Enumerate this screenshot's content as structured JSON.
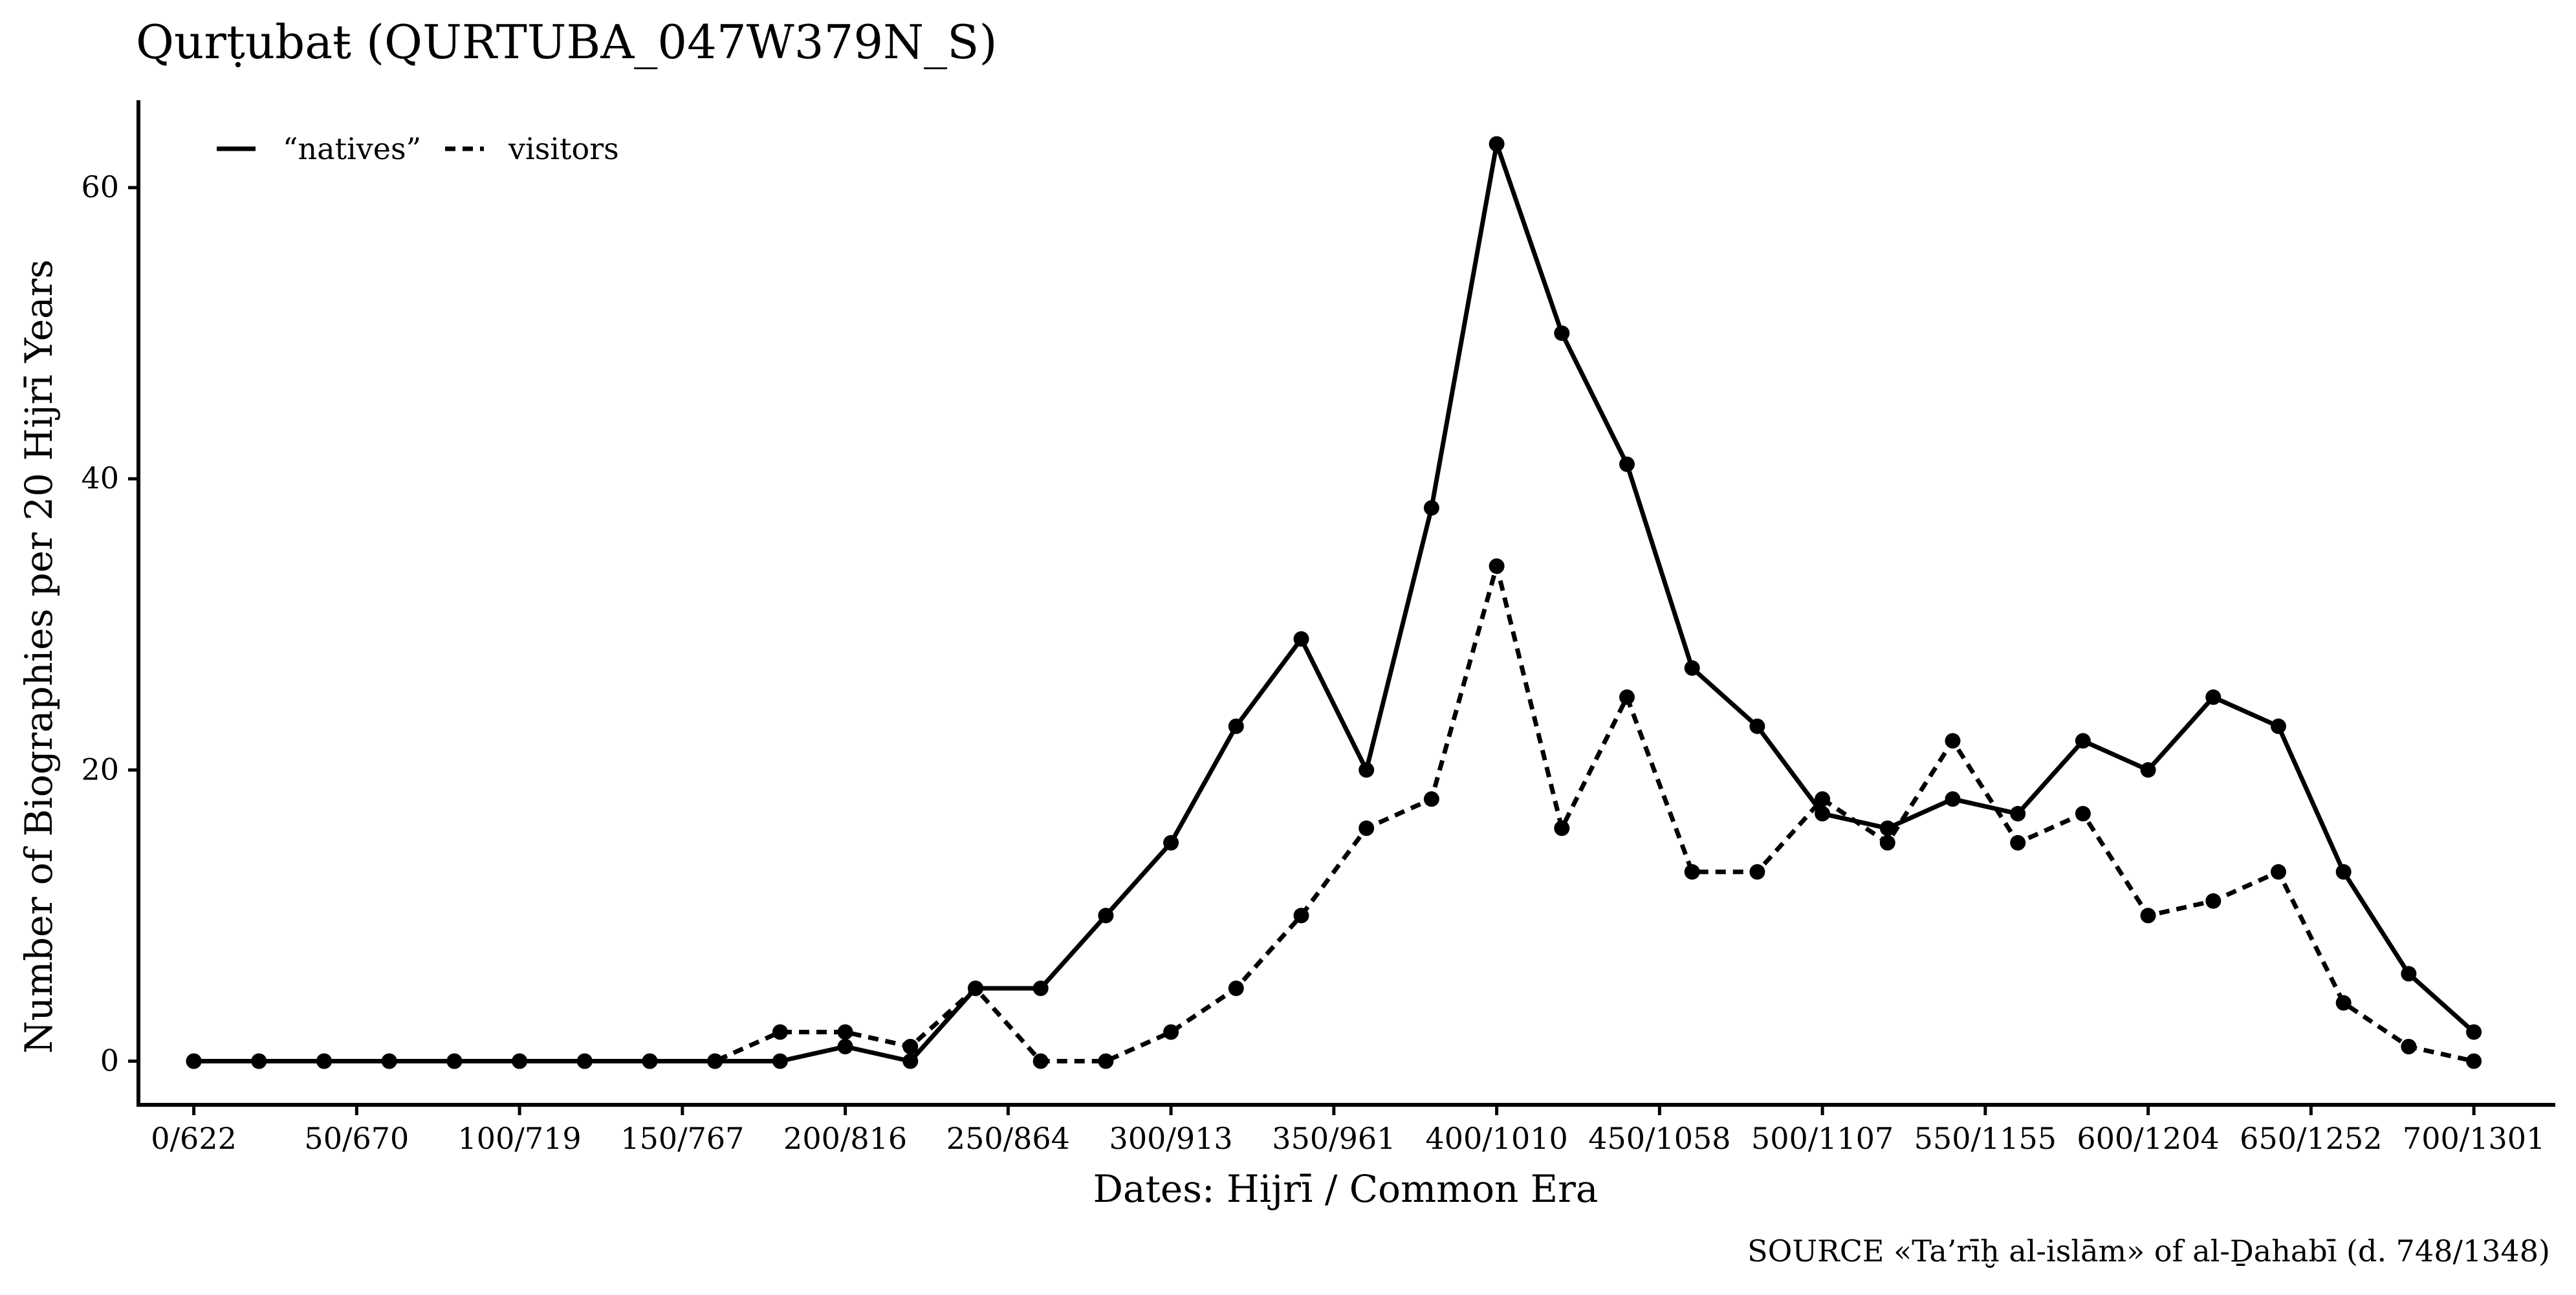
{
  "chart_data": {
    "type": "line",
    "title": "Qurṭubaŧ (QURTUBA_047W379N_S)",
    "xlabel": "Dates: Hijrī / Common Era",
    "ylabel": "Number of Biographies per 20 Hijrī Years",
    "caption": "SOURCE «Ta’rīḫ al-islām» of al-Ḏahabī (d. 748/1348)",
    "xlim": [
      -17,
      725
    ],
    "ylim": [
      -3,
      66
    ],
    "x_ticks": [
      {
        "value": 0,
        "label": "0/622"
      },
      {
        "value": 50,
        "label": "50/670"
      },
      {
        "value": 100,
        "label": "100/719"
      },
      {
        "value": 150,
        "label": "150/767"
      },
      {
        "value": 200,
        "label": "200/816"
      },
      {
        "value": 250,
        "label": "250/864"
      },
      {
        "value": 300,
        "label": "300/913"
      },
      {
        "value": 350,
        "label": "350/961"
      },
      {
        "value": 400,
        "label": "400/1010"
      },
      {
        "value": 450,
        "label": "450/1058"
      },
      {
        "value": 500,
        "label": "500/1107"
      },
      {
        "value": 550,
        "label": "550/1155"
      },
      {
        "value": 600,
        "label": "600/1204"
      },
      {
        "value": 650,
        "label": "650/1252"
      },
      {
        "value": 700,
        "label": "700/1301"
      }
    ],
    "y_ticks": [
      {
        "value": 0,
        "label": "0"
      },
      {
        "value": 20,
        "label": "20"
      },
      {
        "value": 40,
        "label": "40"
      },
      {
        "value": 60,
        "label": "60"
      }
    ],
    "grid": false,
    "legend_position": "top-left",
    "x": [
      0,
      20,
      40,
      60,
      80,
      100,
      120,
      140,
      160,
      180,
      200,
      220,
      240,
      260,
      280,
      300,
      320,
      340,
      360,
      380,
      400,
      420,
      440,
      460,
      480,
      500,
      520,
      540,
      560,
      580,
      600,
      620,
      640,
      660,
      680,
      700
    ],
    "series": [
      {
        "name": "“natives”",
        "line_style": "solid",
        "color": "#000000",
        "values": [
          0,
          0,
          0,
          0,
          0,
          0,
          0,
          0,
          0,
          0,
          1,
          0,
          5,
          5,
          10,
          15,
          23,
          29,
          20,
          38,
          63,
          50,
          41,
          27,
          23,
          17,
          16,
          18,
          17,
          22,
          20,
          25,
          23,
          13,
          6,
          2
        ]
      },
      {
        "name": "visitors",
        "line_style": "dashed",
        "color": "#000000",
        "values": [
          0,
          0,
          0,
          0,
          0,
          0,
          0,
          0,
          0,
          2,
          2,
          1,
          5,
          0,
          0,
          2,
          5,
          10,
          16,
          18,
          34,
          16,
          25,
          13,
          13,
          18,
          15,
          22,
          15,
          17,
          10,
          11,
          13,
          4,
          1,
          0
        ]
      }
    ]
  }
}
